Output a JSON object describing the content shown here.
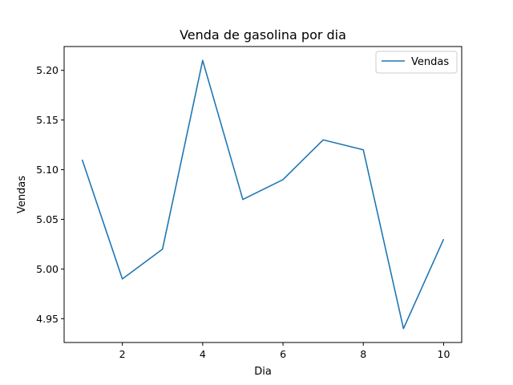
{
  "chart_data": {
    "type": "line",
    "title": "Venda de gasolina por dia",
    "xlabel": "Dia",
    "ylabel": "Vendas",
    "x": [
      1,
      2,
      3,
      4,
      5,
      6,
      7,
      8,
      9,
      10
    ],
    "series": [
      {
        "name": "Vendas",
        "color": "#1f77b4",
        "values": [
          5.11,
          4.99,
          5.02,
          5.21,
          5.07,
          5.09,
          5.13,
          5.12,
          4.94,
          5.03
        ]
      }
    ],
    "xlim": [
      0.55,
      10.45
    ],
    "ylim": [
      4.926,
      5.224
    ],
    "xticks": [
      2,
      4,
      6,
      8,
      10
    ],
    "xtick_labels": [
      "2",
      "4",
      "6",
      "8",
      "10"
    ],
    "yticks": [
      4.95,
      5.0,
      5.05,
      5.1,
      5.15,
      5.2
    ],
    "ytick_labels": [
      "4.95",
      "5.00",
      "5.05",
      "5.10",
      "5.15",
      "5.20"
    ],
    "grid": false,
    "legend_position": "top-right"
  }
}
